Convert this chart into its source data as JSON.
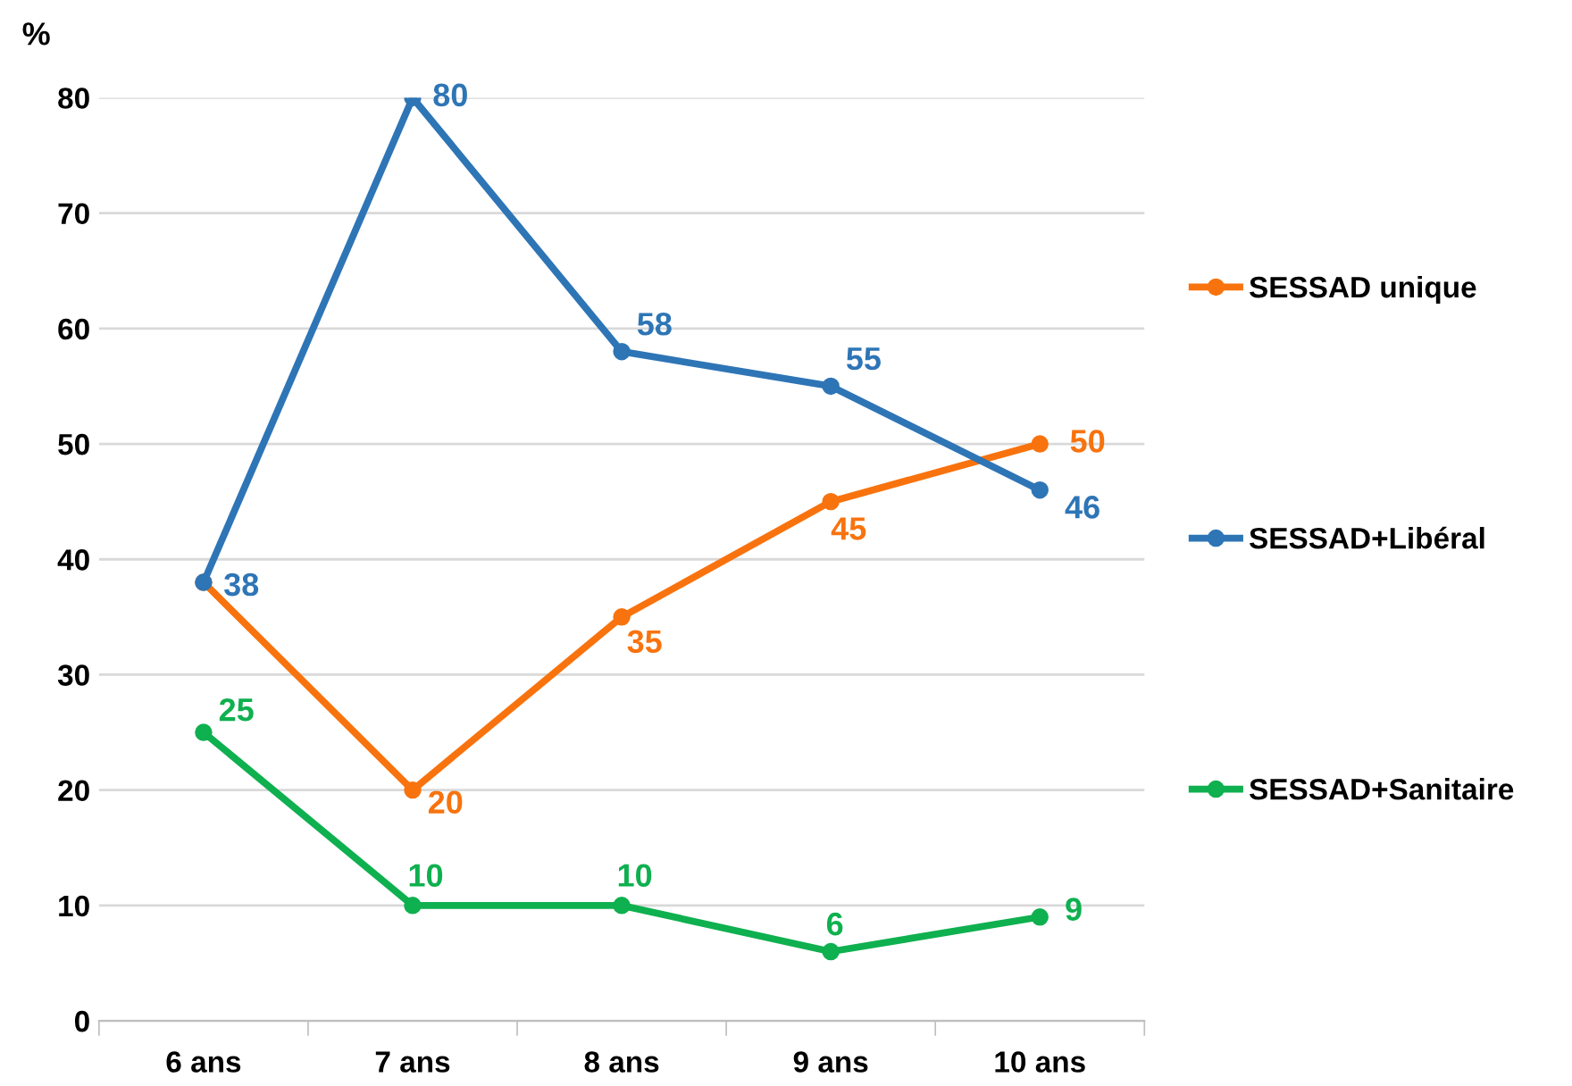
{
  "chart_data": {
    "type": "line",
    "ylabel": "%",
    "categories": [
      "6 ans",
      "7 ans",
      "8 ans",
      "9 ans",
      "10 ans"
    ],
    "series": [
      {
        "name": "SESSAD unique",
        "color": "#f8730e",
        "values": [
          38,
          20,
          35,
          45,
          50
        ],
        "value_labels": [
          null,
          "20",
          "35",
          "45",
          "50"
        ]
      },
      {
        "name": "SESSAD+Libéral",
        "color": "#2e75b6",
        "values": [
          38,
          80,
          58,
          55,
          46
        ],
        "value_labels": [
          "38",
          "80",
          "58",
          "55",
          "46"
        ]
      },
      {
        "name": "SESSAD+Sanitaire",
        "color": "#0fb04f",
        "values": [
          25,
          10,
          10,
          6,
          9
        ],
        "value_labels": [
          "25",
          "10",
          "10",
          "6",
          "9"
        ]
      }
    ],
    "ylim": [
      0,
      80
    ],
    "yticks": [
      0,
      10,
      20,
      30,
      40,
      50,
      60,
      70,
      80
    ],
    "grid": "y",
    "legend": "right",
    "marker": "circle",
    "line_style": "solid"
  }
}
